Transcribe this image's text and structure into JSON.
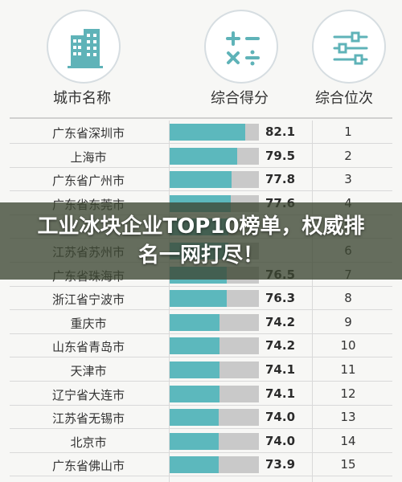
{
  "headers": {
    "city": "城市名称",
    "score": "综合得分",
    "rank": "综合位次"
  },
  "icons": {
    "city": "building-icon",
    "score": "calculator-icon",
    "rank": "sliders-icon"
  },
  "banner": {
    "title": "工业冰块企业TOP10榜单，权威排名一网打尽！"
  },
  "colors": {
    "bar": "#5cb8bd",
    "bar_track": "#c9c9c9",
    "icon": "#5fb3b8"
  },
  "chart_data": {
    "type": "table",
    "columns": [
      "城市名称",
      "综合得分",
      "综合位次"
    ],
    "rows": [
      {
        "city": "广东省深圳市",
        "score": "82.1",
        "rank": "1"
      },
      {
        "city": "上海市",
        "score": "79.5",
        "rank": "2"
      },
      {
        "city": "广东省广州市",
        "score": "77.8",
        "rank": "3"
      },
      {
        "city": "广东省东莞市",
        "score": "77.6",
        "rank": "4"
      },
      {
        "city": "",
        "score": "",
        "rank": "5"
      },
      {
        "city": "江苏省苏州市",
        "score": "",
        "rank": "6"
      },
      {
        "city": "广东省珠海市",
        "score": "76.5",
        "rank": "7"
      },
      {
        "city": "浙江省宁波市",
        "score": "76.3",
        "rank": "8"
      },
      {
        "city": "重庆市",
        "score": "74.2",
        "rank": "9"
      },
      {
        "city": "山东省青岛市",
        "score": "74.2",
        "rank": "10"
      },
      {
        "city": "天津市",
        "score": "74.1",
        "rank": "11"
      },
      {
        "city": "辽宁省大连市",
        "score": "74.1",
        "rank": "12"
      },
      {
        "city": "江苏省无锡市",
        "score": "74.0",
        "rank": "13"
      },
      {
        "city": "北京市",
        "score": "74.0",
        "rank": "14"
      },
      {
        "city": "广东省佛山市",
        "score": "73.9",
        "rank": "15"
      }
    ],
    "bar_values": [
      82.1,
      79.5,
      77.8,
      77.6,
      77.0,
      76.8,
      76.5,
      76.3,
      74.2,
      74.2,
      74.1,
      74.1,
      74.0,
      74.0,
      73.9
    ],
    "bar_range": [
      0,
      85
    ]
  }
}
